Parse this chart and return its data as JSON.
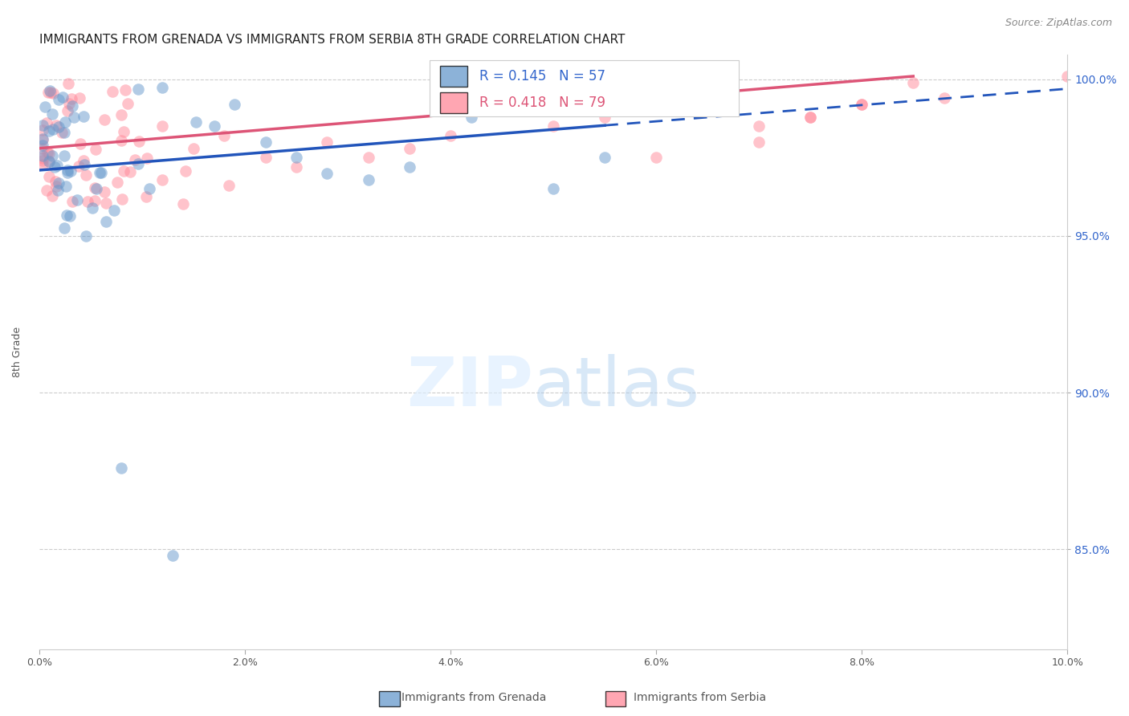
{
  "title": "IMMIGRANTS FROM GRENADA VS IMMIGRANTS FROM SERBIA 8TH GRADE CORRELATION CHART",
  "source": "Source: ZipAtlas.com",
  "ylabel_left": "8th Grade",
  "x_min": 0.0,
  "x_max": 0.1,
  "y_min": 0.818,
  "y_max": 1.008,
  "y_ticks": [
    0.85,
    0.9,
    0.95,
    1.0
  ],
  "y_tick_labels": [
    "85.0%",
    "90.0%",
    "95.0%",
    "100.0%"
  ],
  "x_ticks": [
    0.0,
    0.02,
    0.04,
    0.06,
    0.08,
    0.1
  ],
  "x_tick_labels": [
    "0.0%",
    "2.0%",
    "4.0%",
    "6.0%",
    "8.0%",
    "10.0%"
  ],
  "legend_grenada": "Immigrants from Grenada",
  "legend_serbia": "Immigrants from Serbia",
  "r_grenada": 0.145,
  "n_grenada": 57,
  "r_serbia": 0.418,
  "n_serbia": 79,
  "color_grenada": "#6699CC",
  "color_serbia": "#FF8899",
  "title_fontsize": 11,
  "source_fontsize": 9,
  "background_color": "#ffffff",
  "trendline_grenada_x0": 0.0,
  "trendline_grenada_y0": 0.971,
  "trendline_grenada_x1": 0.1,
  "trendline_grenada_y1": 0.997,
  "trendline_grenada_solid_end": 0.055,
  "trendline_serbia_x0": 0.0,
  "trendline_serbia_y0": 0.978,
  "trendline_serbia_x1": 0.085,
  "trendline_serbia_y1": 1.001
}
